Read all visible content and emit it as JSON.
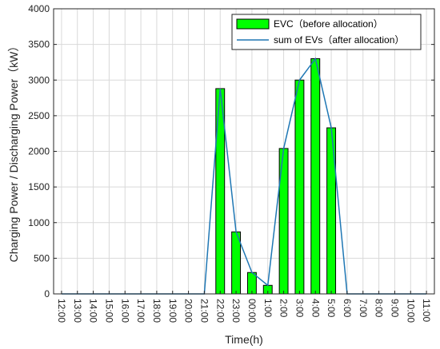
{
  "chart_data": {
    "type": "bar",
    "title": "",
    "xlabel": "Time(h)",
    "ylabel": "Charging Power / Discharging Power（kW）",
    "ylim": [
      0,
      4000
    ],
    "yticks": [
      0,
      500,
      1000,
      1500,
      2000,
      2500,
      3000,
      3500,
      4000
    ],
    "grid": true,
    "legend_position": "top-right",
    "categories": [
      "12:00",
      "13:00",
      "14:00",
      "15:00",
      "16:00",
      "17:00",
      "18:00",
      "19:00",
      "20:00",
      "21:00",
      "22:00",
      "23:00",
      "00:00",
      "1:00",
      "2:00",
      "3:00",
      "4:00",
      "5:00",
      "6:00",
      "7:00",
      "8:00",
      "9:00",
      "10:00",
      "11:00"
    ],
    "series": [
      {
        "name": "EVC（before allocation）",
        "type": "bar",
        "color": "#00ff00",
        "values": [
          0,
          0,
          0,
          0,
          0,
          0,
          0,
          0,
          0,
          0,
          2880,
          870,
          300,
          120,
          2040,
          3000,
          3300,
          2330,
          0,
          0,
          0,
          0,
          0,
          0
        ]
      },
      {
        "name": "sum of EVs（after allocation）",
        "type": "line",
        "color": "#1f77b4",
        "values": [
          0,
          0,
          0,
          0,
          0,
          0,
          0,
          0,
          0,
          0,
          2880,
          870,
          300,
          120,
          2040,
          3000,
          3300,
          2330,
          0,
          0,
          0,
          0,
          0,
          0
        ]
      }
    ]
  }
}
